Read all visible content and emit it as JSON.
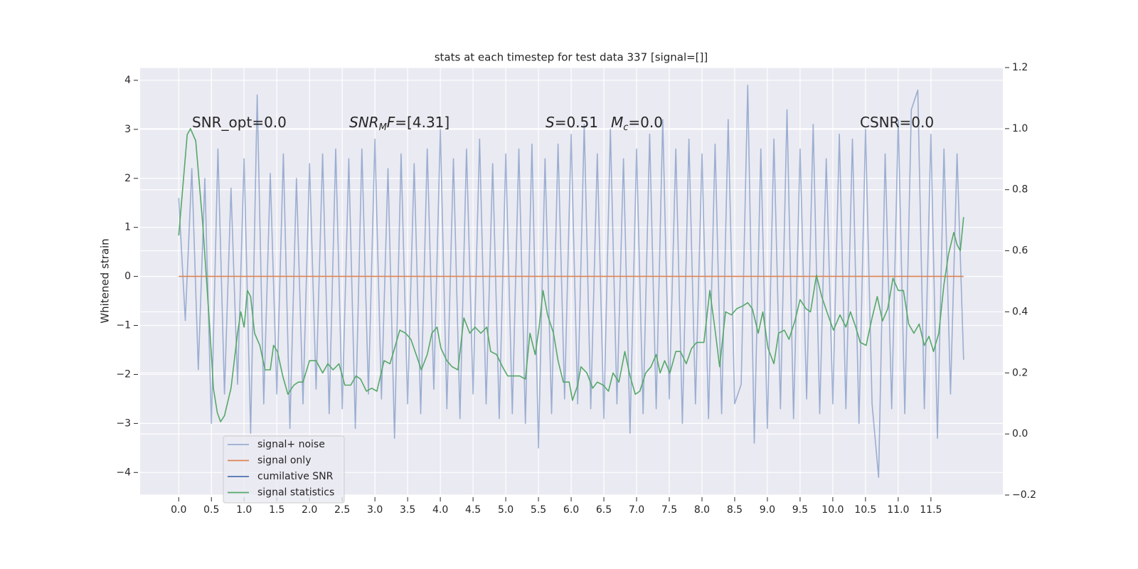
{
  "chart_data": {
    "type": "line",
    "title": "stats at each timestep for test data 337 [signal=[]]",
    "y_label": "Whitened strain",
    "xlim": [
      -0.59,
      12.6
    ],
    "ylim": [
      -4.46,
      4.26
    ],
    "y2lim": [
      -0.2,
      1.2
    ],
    "xticks": [
      {
        "value": 0,
        "label": "0.0"
      },
      {
        "value": 0.5,
        "label": "0.5"
      },
      {
        "value": 1,
        "label": "1.0"
      },
      {
        "value": 1.5,
        "label": "1.5"
      },
      {
        "value": 2,
        "label": "2.0"
      },
      {
        "value": 2.5,
        "label": "2.5"
      },
      {
        "value": 3,
        "label": "3.0"
      },
      {
        "value": 3.5,
        "label": "3.5"
      },
      {
        "value": 4,
        "label": "4.0"
      },
      {
        "value": 4.5,
        "label": "4.5"
      },
      {
        "value": 5,
        "label": "5.0"
      },
      {
        "value": 5.5,
        "label": "5.5"
      },
      {
        "value": 6,
        "label": "6.0"
      },
      {
        "value": 6.5,
        "label": "6.5"
      },
      {
        "value": 7,
        "label": "7.0"
      },
      {
        "value": 7.5,
        "label": "7.5"
      },
      {
        "value": 8,
        "label": "8.0"
      },
      {
        "value": 8.5,
        "label": "8.5"
      },
      {
        "value": 9,
        "label": "9.0"
      },
      {
        "value": 9.5,
        "label": "9.5"
      },
      {
        "value": 10,
        "label": "10.0"
      },
      {
        "value": 10.5,
        "label": "10.5"
      },
      {
        "value": 11,
        "label": "11.0"
      },
      {
        "value": 11.5,
        "label": "11.5"
      }
    ],
    "yticks": [
      {
        "value": -4,
        "label": "−4"
      },
      {
        "value": -3,
        "label": "−3"
      },
      {
        "value": -2,
        "label": "−2"
      },
      {
        "value": -1,
        "label": "−1"
      },
      0,
      1,
      2,
      3,
      4
    ],
    "y2ticks": [
      {
        "value": -0.2,
        "label": "−0.2"
      },
      {
        "value": 0,
        "label": "0.0"
      },
      {
        "value": 0.2,
        "label": "0.2"
      },
      {
        "value": 0.4,
        "label": "0.4"
      },
      {
        "value": 0.6,
        "label": "0.6"
      },
      {
        "value": 0.8,
        "label": "0.8"
      },
      {
        "value": 1,
        "label": "1.0"
      },
      {
        "value": 1.2,
        "label": "1.2"
      }
    ],
    "grid": true,
    "legend": "lower left",
    "annotations": [
      {
        "parts": [
          {
            "text": "SNR_opt=0.0"
          }
        ]
      },
      {
        "parts": [
          {
            "text": "SNR",
            "italic": true
          },
          {
            "text": "M",
            "italic": true,
            "sub": true
          },
          {
            "text": "F",
            "italic": true
          },
          {
            "text": "=[4.31]"
          }
        ]
      },
      {
        "parts": [
          {
            "text": "S",
            "italic": true
          },
          {
            "text": "=0.51"
          }
        ]
      },
      {
        "parts": [
          {
            "text": "M",
            "italic": true
          },
          {
            "text": "c",
            "italic": true,
            "sub": true
          },
          {
            "text": "=0.0"
          }
        ]
      },
      {
        "parts": [
          {
            "text": "CSNR=0.0"
          }
        ]
      }
    ],
    "series": [
      {
        "name": "signal+ noise",
        "color": "#4c72b0",
        "opacity": 0.5,
        "x": [
          0,
          0.1,
          0.2,
          0.3,
          0.4,
          0.5,
          0.6,
          0.7,
          0.8,
          0.9,
          1,
          1.1,
          1.2,
          1.3,
          1.4,
          1.5,
          1.6,
          1.7,
          1.8,
          1.9,
          2,
          2.1,
          2.2,
          2.3,
          2.4,
          2.5,
          2.6,
          2.7,
          2.8,
          2.9,
          3,
          3.1,
          3.2,
          3.3,
          3.4,
          3.5,
          3.6,
          3.7,
          3.8,
          3.9,
          4,
          4.1,
          4.2,
          4.3,
          4.4,
          4.5,
          4.6,
          4.7,
          4.8,
          4.9,
          5,
          5.1,
          5.2,
          5.3,
          5.4,
          5.5,
          5.6,
          5.7,
          5.8,
          5.9,
          6,
          6.1,
          6.2,
          6.3,
          6.4,
          6.5,
          6.6,
          6.7,
          6.8,
          6.9,
          7,
          7.1,
          7.2,
          7.3,
          7.4,
          7.5,
          7.6,
          7.7,
          7.8,
          7.9,
          8,
          8.1,
          8.2,
          8.3,
          8.4,
          8.5,
          8.6,
          8.7,
          8.8,
          8.9,
          9,
          9.1,
          9.2,
          9.3,
          9.4,
          9.5,
          9.6,
          9.7,
          9.8,
          9.9,
          10,
          10.1,
          10.2,
          10.3,
          10.4,
          10.5,
          10.6,
          10.7,
          10.8,
          10.9,
          11,
          11.1,
          11.2,
          11.3,
          11.4,
          11.5,
          11.6,
          11.7,
          11.8,
          11.9,
          12
        ],
        "values": [
          1.6,
          -0.9,
          2.2,
          -1.9,
          2.0,
          -3.0,
          2.6,
          -2.4,
          1.8,
          -2.2,
          2.4,
          -3.2,
          3.7,
          -2.6,
          2.1,
          -2.4,
          2.5,
          -3.1,
          2.0,
          -2.6,
          2.3,
          -2.3,
          2.5,
          -2.8,
          2.6,
          -2.7,
          2.4,
          -3.1,
          2.6,
          -2.4,
          2.8,
          -2.5,
          2.2,
          -3.3,
          2.5,
          -2.6,
          2.3,
          -2.8,
          2.6,
          -2.3,
          3.0,
          -2.7,
          2.4,
          -2.9,
          2.6,
          -2.4,
          2.8,
          -2.6,
          2.3,
          -2.9,
          2.5,
          -2.8,
          2.6,
          -3.0,
          2.7,
          -3.5,
          2.4,
          -2.8,
          2.7,
          -2.5,
          2.9,
          -2.6,
          3.1,
          -2.7,
          2.5,
          -2.9,
          3.0,
          -2.6,
          2.4,
          -3.2,
          2.6,
          -2.8,
          2.9,
          -2.7,
          3.2,
          -2.5,
          2.6,
          -3.0,
          2.8,
          -2.6,
          2.5,
          -2.9,
          2.7,
          -2.8,
          3.2,
          -2.6,
          -2.2,
          3.9,
          -3.4,
          2.6,
          -3.1,
          2.8,
          -2.7,
          3.4,
          -2.9,
          2.6,
          -2.5,
          3.1,
          -2.8,
          2.4,
          -2.6,
          2.9,
          -2.7,
          2.8,
          -3.0,
          3.0,
          -2.6,
          -4.1,
          2.5,
          -2.7,
          3.2,
          -2.8,
          3.4,
          3.8,
          -2.7,
          2.9,
          -3.3,
          2.6,
          -2.4,
          2.5,
          -1.7
        ]
      },
      {
        "name": "signal only",
        "color": "#dd8452",
        "opacity": 1,
        "x": [
          0,
          12
        ],
        "values": [
          0,
          0
        ]
      },
      {
        "name": "cumilative SNR",
        "color": "#4c72b0",
        "opacity": 1,
        "x": [],
        "values": []
      },
      {
        "name": "signal statistics",
        "color": "#55a868",
        "opacity": 1,
        "axis": "y2",
        "x": [
          0,
          0.13,
          0.18,
          0.26,
          0.37,
          0.48,
          0.53,
          0.59,
          0.64,
          0.7,
          0.8,
          0.9,
          0.95,
          1,
          1.05,
          1.1,
          1.16,
          1.24,
          1.32,
          1.4,
          1.45,
          1.51,
          1.59,
          1.67,
          1.76,
          1.83,
          1.9,
          2.0,
          2.1,
          2.2,
          2.28,
          2.36,
          2.45,
          2.54,
          2.63,
          2.71,
          2.78,
          2.87,
          2.95,
          3.03,
          3.14,
          3.23,
          3.3,
          3.38,
          3.47,
          3.55,
          3.63,
          3.71,
          3.8,
          3.87,
          3.95,
          4.01,
          4.1,
          4.18,
          4.27,
          4.36,
          4.45,
          4.53,
          4.62,
          4.71,
          4.77,
          4.86,
          4.95,
          5.03,
          5.12,
          5.21,
          5.3,
          5.37,
          5.45,
          5.51,
          5.57,
          5.64,
          5.73,
          5.8,
          5.88,
          5.97,
          6.02,
          6.1,
          6.15,
          6.24,
          6.33,
          6.4,
          6.49,
          6.57,
          6.64,
          6.73,
          6.82,
          6.9,
          6.98,
          7.05,
          7.14,
          7.22,
          7.3,
          7.36,
          7.43,
          7.51,
          7.6,
          7.67,
          7.76,
          7.84,
          7.92,
          8.03,
          8.12,
          8.2,
          8.27,
          8.36,
          8.45,
          8.53,
          8.63,
          8.7,
          8.77,
          8.86,
          8.93,
          9.01,
          9.1,
          9.17,
          9.26,
          9.33,
          9.42,
          9.5,
          9.59,
          9.66,
          9.75,
          9.83,
          9.91,
          10.01,
          10.11,
          10.2,
          10.27,
          10.35,
          10.42,
          10.51,
          10.6,
          10.68,
          10.76,
          10.84,
          10.92,
          11.0,
          11.08,
          11.16,
          11.24,
          11.32,
          11.4,
          11.47,
          11.54,
          11.62,
          11.7,
          11.77,
          11.85,
          11.9,
          11.95,
          12.0
        ],
        "values": [
          0.65,
          0.98,
          1.0,
          0.96,
          0.68,
          0.33,
          0.15,
          0.07,
          0.04,
          0.06,
          0.15,
          0.33,
          0.4,
          0.35,
          0.47,
          0.45,
          0.33,
          0.29,
          0.21,
          0.21,
          0.29,
          0.27,
          0.19,
          0.13,
          0.16,
          0.17,
          0.17,
          0.24,
          0.24,
          0.2,
          0.23,
          0.21,
          0.23,
          0.16,
          0.16,
          0.19,
          0.18,
          0.14,
          0.15,
          0.14,
          0.24,
          0.23,
          0.28,
          0.34,
          0.33,
          0.31,
          0.26,
          0.21,
          0.26,
          0.33,
          0.35,
          0.28,
          0.24,
          0.22,
          0.21,
          0.38,
          0.33,
          0.35,
          0.33,
          0.35,
          0.27,
          0.26,
          0.22,
          0.19,
          0.19,
          0.19,
          0.18,
          0.33,
          0.26,
          0.35,
          0.47,
          0.39,
          0.33,
          0.24,
          0.17,
          0.17,
          0.11,
          0.16,
          0.22,
          0.2,
          0.15,
          0.17,
          0.16,
          0.14,
          0.2,
          0.17,
          0.27,
          0.19,
          0.13,
          0.14,
          0.2,
          0.22,
          0.26,
          0.2,
          0.24,
          0.2,
          0.27,
          0.27,
          0.23,
          0.28,
          0.3,
          0.3,
          0.47,
          0.34,
          0.22,
          0.4,
          0.39,
          0.41,
          0.42,
          0.43,
          0.41,
          0.33,
          0.4,
          0.28,
          0.23,
          0.33,
          0.34,
          0.31,
          0.37,
          0.44,
          0.41,
          0.4,
          0.52,
          0.45,
          0.4,
          0.34,
          0.39,
          0.35,
          0.4,
          0.35,
          0.3,
          0.29,
          0.38,
          0.45,
          0.37,
          0.41,
          0.51,
          0.47,
          0.47,
          0.36,
          0.33,
          0.36,
          0.29,
          0.32,
          0.27,
          0.33,
          0.49,
          0.59,
          0.66,
          0.62,
          0.6,
          0.71
        ]
      }
    ]
  }
}
